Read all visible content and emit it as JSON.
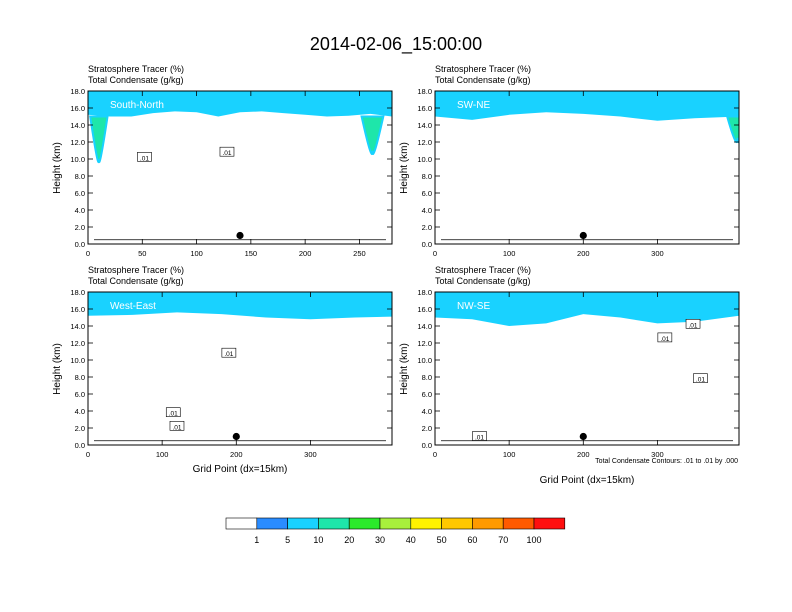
{
  "title": "2014-02-06_15:00:00",
  "colorbar": {
    "colors": [
      "#ffffff",
      "#2a8cff",
      "#19d2ff",
      "#1ee6aa",
      "#2bea2b",
      "#a8f03c",
      "#fff300",
      "#ffc800",
      "#ff9a00",
      "#ff5a00",
      "#ff0f0f"
    ],
    "labels": [
      "1",
      "5",
      "10",
      "20",
      "30",
      "40",
      "50",
      "60",
      "70",
      "100"
    ]
  },
  "contour_note": "Total Condensate Contours: .01 to .01 by .000",
  "chart_data": [
    {
      "type": "heatmap",
      "label": "South-North",
      "title_line1": "Stratosphere Tracer   (%)",
      "title_line2": "Total Condensate   (g/kg)",
      "ylabel": "Height (km)",
      "xlabel": "",
      "xlim": [
        0,
        280
      ],
      "ylim": [
        0,
        18
      ],
      "xticks": [
        0,
        50,
        100,
        150,
        200,
        250
      ],
      "yticks": [
        "0.0",
        "2.0",
        "4.0",
        "6.0",
        "8.0",
        "10.0",
        "12.0",
        "14.0",
        "16.0",
        "18.0"
      ],
      "contour_labels": [
        {
          "text": ".01",
          "x": 52,
          "y": 10.2
        },
        {
          "text": ".01",
          "x": 128,
          "y": 10.8
        }
      ],
      "marker": {
        "x": 140,
        "y": 1.0
      },
      "tropopause": [
        [
          0,
          15.2
        ],
        [
          20,
          15.0
        ],
        [
          40,
          15.0
        ],
        [
          60,
          15.4
        ],
        [
          80,
          15.6
        ],
        [
          100,
          15.5
        ],
        [
          120,
          15.0
        ],
        [
          140,
          15.5
        ],
        [
          160,
          15.6
        ],
        [
          180,
          15.4
        ],
        [
          200,
          15.2
        ],
        [
          220,
          15.0
        ],
        [
          240,
          15.1
        ],
        [
          260,
          15.3
        ],
        [
          280,
          15.0
        ]
      ],
      "intrusions": [
        [
          10,
          10.0,
          8
        ],
        [
          262,
          11.0,
          10
        ]
      ]
    },
    {
      "type": "heatmap",
      "label": "SW-NE",
      "title_line1": "Stratosphere Tracer   (%)",
      "title_line2": "Total Condensate   (g/kg)",
      "ylabel": "Height (km)",
      "xlabel": "",
      "xlim": [
        0,
        410
      ],
      "ylim": [
        0,
        18
      ],
      "xticks": [
        0,
        100,
        200,
        300
      ],
      "yticks": [
        "0.0",
        "2.0",
        "4.0",
        "6.0",
        "8.0",
        "10.0",
        "12.0",
        "14.0",
        "16.0",
        "18.0"
      ],
      "contour_labels": [],
      "marker": {
        "x": 200,
        "y": 1.0
      },
      "tropopause": [
        [
          0,
          15.0
        ],
        [
          50,
          14.6
        ],
        [
          100,
          15.2
        ],
        [
          150,
          15.5
        ],
        [
          200,
          15.3
        ],
        [
          250,
          15.0
        ],
        [
          300,
          14.5
        ],
        [
          350,
          14.8
        ],
        [
          410,
          15.0
        ]
      ],
      "intrusions": [
        [
          408,
          12.5,
          14
        ]
      ]
    },
    {
      "type": "heatmap",
      "label": "West-East",
      "title_line1": "Stratosphere Tracer   (%)",
      "title_line2": "Total Condensate   (g/kg)",
      "ylabel": "Height (km)",
      "xlabel": "Grid Point (dx=15km)",
      "xlim": [
        0,
        410
      ],
      "ylim": [
        0,
        18
      ],
      "xticks": [
        0,
        100,
        200,
        300
      ],
      "yticks": [
        "0.0",
        "2.0",
        "4.0",
        "6.0",
        "8.0",
        "10.0",
        "12.0",
        "14.0",
        "16.0",
        "18.0"
      ],
      "contour_labels": [
        {
          "text": ".01",
          "x": 190,
          "y": 10.8
        },
        {
          "text": ".01",
          "x": 115,
          "y": 3.8
        },
        {
          "text": ".01",
          "x": 120,
          "y": 2.2
        }
      ],
      "marker": {
        "x": 200,
        "y": 1.0
      },
      "tropopause": [
        [
          0,
          15.2
        ],
        [
          60,
          15.3
        ],
        [
          120,
          15.6
        ],
        [
          180,
          15.4
        ],
        [
          240,
          15.0
        ],
        [
          300,
          14.8
        ],
        [
          360,
          15.0
        ],
        [
          410,
          15.1
        ]
      ],
      "intrusions": []
    },
    {
      "type": "heatmap",
      "label": "NW-SE",
      "title_line1": "Stratosphere Tracer   (%)",
      "title_line2": "Total Condensate   (g/kg)",
      "ylabel": "Height (km)",
      "xlabel": "Grid Point (dx=15km)",
      "xlim": [
        0,
        410
      ],
      "ylim": [
        0,
        18
      ],
      "xticks": [
        0,
        100,
        200,
        300
      ],
      "yticks": [
        "0.0",
        "2.0",
        "4.0",
        "6.0",
        "8.0",
        "10.0",
        "12.0",
        "14.0",
        "16.0",
        "18.0"
      ],
      "contour_labels": [
        {
          "text": ".01",
          "x": 348,
          "y": 14.2
        },
        {
          "text": ".01",
          "x": 310,
          "y": 12.6
        },
        {
          "text": ".01",
          "x": 358,
          "y": 7.8
        },
        {
          "text": ".01",
          "x": 60,
          "y": 1.0
        }
      ],
      "marker": {
        "x": 200,
        "y": 1.0
      },
      "tropopause": [
        [
          0,
          15.0
        ],
        [
          50,
          14.8
        ],
        [
          100,
          14.0
        ],
        [
          150,
          14.3
        ],
        [
          200,
          15.4
        ],
        [
          250,
          15.0
        ],
        [
          300,
          14.3
        ],
        [
          350,
          14.5
        ],
        [
          410,
          15.2
        ]
      ],
      "intrusions": []
    }
  ]
}
